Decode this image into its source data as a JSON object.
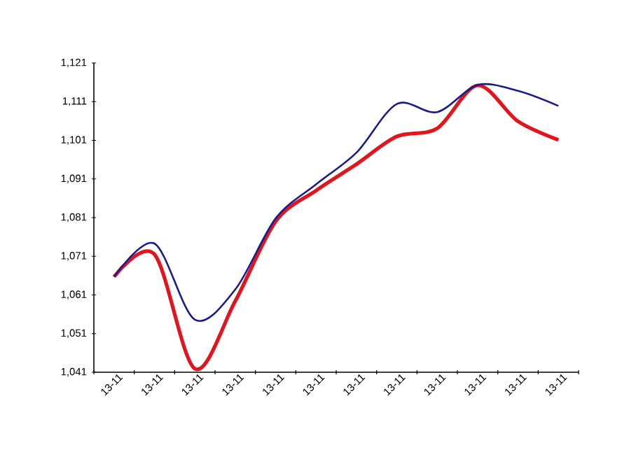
{
  "chart_data": {
    "type": "line",
    "categories": [
      "13-11",
      "13-11",
      "13-11",
      "13-11",
      "13-11",
      "13-11",
      "13-11",
      "13-11",
      "13-11",
      "13-11",
      "13-11",
      "13-11"
    ],
    "series": [
      {
        "color": "#1a1a8c",
        "values": [
          1065.7,
          1074.3,
          1054.6,
          1062.4,
          1080.8,
          1089.6,
          1097.8,
          1110.4,
          1108.3,
          1115.3,
          1113.8,
          1109.9
        ]
      },
      {
        "color": "#e3141b",
        "values": [
          1065.7,
          1071.5,
          1041.9,
          1059.4,
          1080.0,
          1088.0,
          1094.8,
          1102.0,
          1104.1,
          1115.2,
          1105.9,
          1101.1
        ]
      }
    ],
    "ylim": [
      1041,
      1121
    ],
    "yticks": [
      {
        "value": 1041,
        "label": "1,041"
      },
      {
        "value": 1051,
        "label": "1,051"
      },
      {
        "value": 1061,
        "label": "1,061"
      },
      {
        "value": 1071,
        "label": "1,071"
      },
      {
        "value": 1081,
        "label": "1,081"
      },
      {
        "value": 1091,
        "label": "1,091"
      },
      {
        "value": 1101,
        "label": "1,101"
      },
      {
        "value": 1111,
        "label": "1,111"
      },
      {
        "value": 1121,
        "label": "1,121"
      }
    ],
    "grid": false,
    "legend": false,
    "marker": "none",
    "line_style": "solid"
  }
}
